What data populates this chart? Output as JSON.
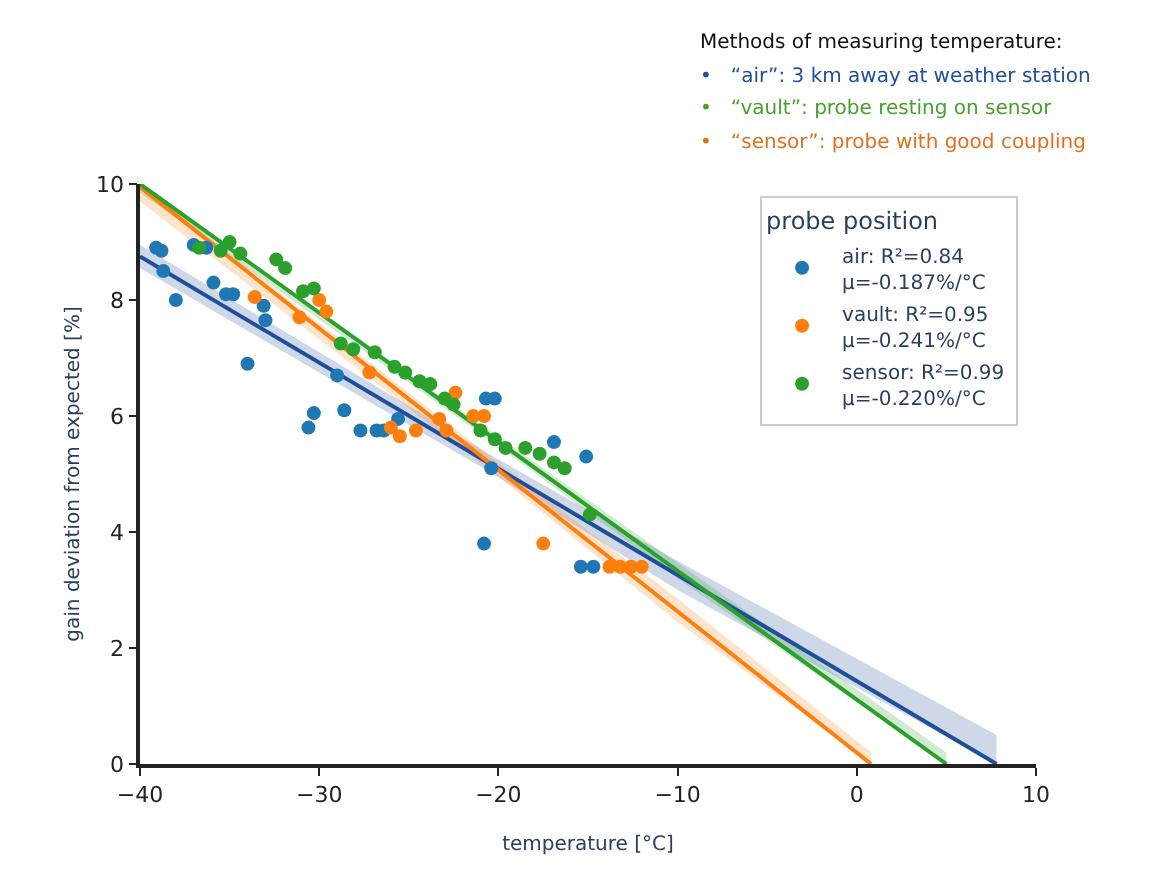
{
  "chart_data": {
    "type": "scatter",
    "annotations": [
      "Methods of measuring temperature:",
      "•   “air”: 3 km away at weather station",
      "•   “vault”: probe resting on sensor",
      "•   “sensor”: probe with good coupling"
    ],
    "xlabel": "temperature [°C]",
    "ylabel": "gain deviation from expected [%]",
    "legend_title": "probe position",
    "legend": "top right",
    "marker": "circle",
    "grid": false,
    "xlim": [
      -40,
      10
    ],
    "xticks": [
      -40,
      -30,
      -20,
      -10,
      0,
      10
    ],
    "ylim": [
      0,
      10
    ],
    "yticks": [
      0,
      2,
      4,
      6,
      8,
      10
    ],
    "series": [
      {
        "name": "air: R²=0.84\nμ=-0.187%/°C",
        "color": "#1f77b4",
        "x": [
          -39.1,
          -38.8,
          -38.7,
          -38.0,
          -37.0,
          -36.3,
          -35.9,
          -35.2,
          -34.8,
          -33.1,
          -33.0,
          -34.0,
          -30.6,
          -30.3,
          -29.0,
          -28.6,
          -27.7,
          -26.8,
          -26.4,
          -25.6,
          -20.8,
          -20.7,
          -20.2,
          -20.4,
          -16.9,
          -15.1,
          -15.4,
          -14.7
        ],
        "values": [
          8.9,
          8.85,
          8.5,
          8.0,
          8.95,
          8.9,
          8.3,
          8.1,
          8.1,
          7.9,
          7.65,
          6.9,
          5.8,
          6.05,
          6.7,
          6.1,
          5.75,
          5.75,
          5.75,
          5.95,
          3.8,
          6.3,
          6.3,
          5.1,
          5.55,
          5.3,
          3.4,
          3.4
        ]
      },
      {
        "name": "vault: R²=0.95\nμ=-0.241%/°C",
        "color": "#ff7f0e",
        "x": [
          -33.6,
          -31.1,
          -30.0,
          -29.6,
          -27.2,
          -26.0,
          -25.5,
          -24.6,
          -23.3,
          -22.9,
          -22.4,
          -21.4,
          -20.8,
          -17.5,
          -13.8,
          -13.2,
          -12.6,
          -12.0
        ],
        "values": [
          8.05,
          7.7,
          8.0,
          7.8,
          6.75,
          5.8,
          5.65,
          5.75,
          5.95,
          5.75,
          6.4,
          6.0,
          6.0,
          3.8,
          3.4,
          3.4,
          3.4,
          3.4
        ]
      },
      {
        "name": "sensor: R²=0.99\nμ=-0.220%/°C",
        "color": "#2ca02c",
        "x": [
          -36.7,
          -35.5,
          -35.0,
          -34.4,
          -32.4,
          -31.9,
          -30.9,
          -30.3,
          -28.8,
          -28.1,
          -26.9,
          -25.8,
          -25.2,
          -24.4,
          -23.8,
          -23.0,
          -22.5,
          -21.0,
          -20.2,
          -19.6,
          -18.5,
          -17.7,
          -16.9,
          -16.3,
          -14.9
        ],
        "values": [
          8.9,
          8.85,
          9.0,
          8.8,
          8.7,
          8.55,
          8.15,
          8.2,
          7.25,
          7.15,
          7.1,
          6.85,
          6.75,
          6.6,
          6.55,
          6.3,
          6.2,
          5.75,
          5.6,
          5.45,
          5.45,
          5.35,
          5.2,
          5.1,
          4.3
        ]
      },
      {
        "type": "line",
        "marker": "none",
        "color": "#1f4e9a",
        "x": [
          -40,
          -20,
          -10,
          7.8
        ],
        "values": [
          8.75,
          5.09,
          3.26,
          0
        ],
        "lower": [
          8.55,
          4.95,
          3.0,
          0
        ],
        "upper": [
          8.95,
          5.25,
          3.5,
          0.5
        ]
      },
      {
        "type": "line",
        "marker": "none",
        "color": "#ff7f0e",
        "x": [
          -40,
          -20,
          -10,
          0.8
        ],
        "values": [
          9.95,
          5.07,
          2.63,
          0
        ],
        "lower": [
          9.7,
          4.95,
          2.45,
          0
        ],
        "upper": [
          10,
          5.2,
          2.85,
          0.2
        ]
      },
      {
        "type": "line",
        "marker": "none",
        "color": "#2ca02c",
        "x": [
          -40,
          -20,
          -10,
          5.0
        ],
        "values": [
          10.0,
          5.56,
          3.33,
          0
        ],
        "lower": [
          9.85,
          5.48,
          3.2,
          0
        ],
        "upper": [
          10,
          5.64,
          3.45,
          0.2
        ]
      }
    ]
  }
}
